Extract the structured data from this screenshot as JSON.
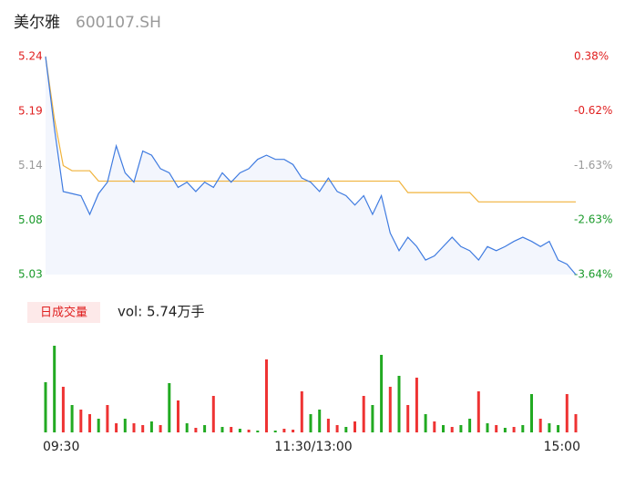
{
  "header": {
    "name": "美尔雅",
    "code": "600107.SH"
  },
  "chart_data": [
    {
      "type": "line",
      "categories": [
        "09:30",
        null,
        null,
        null,
        null,
        null,
        null,
        null,
        null,
        null,
        null,
        null,
        null,
        null,
        null,
        null,
        null,
        null,
        null,
        null,
        null,
        null,
        null,
        null,
        null,
        null,
        null,
        null,
        null,
        null,
        "11:30/13:00",
        null,
        null,
        null,
        null,
        null,
        null,
        null,
        null,
        null,
        null,
        null,
        null,
        null,
        null,
        null,
        null,
        null,
        null,
        null,
        null,
        null,
        null,
        null,
        null,
        null,
        null,
        null,
        null,
        null,
        "15:00"
      ],
      "series": [
        {
          "color": "#3f7be0",
          "values": [
            5.24,
            5.171,
            5.11,
            5.108,
            5.106,
            5.088,
            5.108,
            5.119,
            5.154,
            5.128,
            5.119,
            5.149,
            5.145,
            5.132,
            5.128,
            5.114,
            5.119,
            5.11,
            5.119,
            5.114,
            5.128,
            5.119,
            5.128,
            5.132,
            5.141,
            5.145,
            5.141,
            5.141,
            5.136,
            5.123,
            5.119,
            5.11,
            5.123,
            5.11,
            5.106,
            5.097,
            5.106,
            5.088,
            5.106,
            5.07,
            5.053,
            5.066,
            5.057,
            5.044,
            5.048,
            5.057,
            5.066,
            5.057,
            5.053,
            5.044,
            5.057,
            5.053,
            5.057,
            5.062,
            5.066,
            5.062,
            5.057,
            5.062,
            5.044,
            5.04,
            5.03
          ]
        },
        {
          "color": "#f0b33c",
          "values": [
            5.24,
            5.18,
            5.135,
            5.13,
            5.13,
            5.13,
            5.12,
            5.12,
            5.12,
            5.12,
            5.12,
            5.12,
            5.12,
            5.12,
            5.12,
            5.12,
            5.12,
            5.12,
            5.12,
            5.12,
            5.12,
            5.12,
            5.12,
            5.12,
            5.12,
            5.12,
            5.12,
            5.12,
            5.12,
            5.12,
            5.12,
            5.12,
            5.12,
            5.12,
            5.12,
            5.12,
            5.12,
            5.12,
            5.12,
            5.12,
            5.12,
            5.109,
            5.109,
            5.109,
            5.109,
            5.109,
            5.109,
            5.109,
            5.109,
            5.1,
            5.1,
            5.1,
            5.1,
            5.1,
            5.1,
            5.1,
            5.1,
            5.1,
            5.1,
            5.1,
            5.1
          ]
        }
      ],
      "area_color": "#f3f6fd",
      "ylim": [
        5.03,
        5.24
      ],
      "yticks": [
        {
          "value": 5.24,
          "label": "5.24"
        },
        {
          "value": 5.1875,
          "label": "5.19"
        },
        {
          "value": 5.135,
          "label": "5.14"
        },
        {
          "value": 5.0825,
          "label": "5.08"
        },
        {
          "value": 5.03,
          "label": "5.03"
        }
      ],
      "ytick_colors": [
        "#e02020",
        "#e02020",
        "#999999",
        "#1a9a2a",
        "#1a9a2a"
      ],
      "y2lim": [
        -3.64,
        0.38
      ],
      "y2ticks": [
        {
          "value": 0.38,
          "label": "0.38%"
        },
        {
          "value": -0.62,
          "label": "-0.62%"
        },
        {
          "value": -1.63,
          "label": "-1.63%"
        },
        {
          "value": -2.63,
          "label": "-2.63%"
        },
        {
          "value": -3.64,
          "label": "-3.64%"
        }
      ]
    },
    {
      "type": "bar",
      "title": "日成交量",
      "annotation": "vol: 5.74万手",
      "values": [
        550,
        950,
        500,
        300,
        250,
        200,
        150,
        300,
        100,
        150,
        100,
        80,
        120,
        80,
        540,
        350,
        100,
        50,
        80,
        400,
        60,
        60,
        40,
        30,
        20,
        800,
        20,
        40,
        30,
        450,
        200,
        250,
        150,
        80,
        60,
        120,
        400,
        300,
        850,
        500,
        620,
        300,
        600,
        200,
        120,
        80,
        60,
        80,
        150,
        450,
        100,
        80,
        50,
        60,
        80,
        420,
        150,
        100,
        80,
        420,
        200
      ],
      "colors": [
        "#22aa22",
        "#22aa22",
        "#ee3333",
        "#22aa22",
        "#ee3333",
        "#ee3333",
        "#22aa22",
        "#ee3333",
        "#ee3333",
        "#22aa22",
        "#ee3333",
        "#ee3333",
        "#22aa22",
        "#ee3333",
        "#22aa22",
        "#ee3333",
        "#22aa22",
        "#ee3333",
        "#22aa22",
        "#ee3333",
        "#22aa22",
        "#ee3333",
        "#22aa22",
        "#ee3333",
        "#22aa22",
        "#ee3333",
        "#22aa22",
        "#ee3333",
        "#ee3333",
        "#ee3333",
        "#22aa22",
        "#22aa22",
        "#ee3333",
        "#ee3333",
        "#22aa22",
        "#ee3333",
        "#ee3333",
        "#22aa22",
        "#22aa22",
        "#ee3333",
        "#22aa22",
        "#ee3333",
        "#ee3333",
        "#22aa22",
        "#ee3333",
        "#22aa22",
        "#ee3333",
        "#22aa22",
        "#22aa22",
        "#ee3333",
        "#22aa22",
        "#ee3333",
        "#22aa22",
        "#ee3333",
        "#22aa22",
        "#22aa22",
        "#ee3333",
        "#22aa22",
        "#22aa22",
        "#ee3333",
        "#ee3333"
      ],
      "ylim": [
        0,
        1000
      ]
    }
  ]
}
